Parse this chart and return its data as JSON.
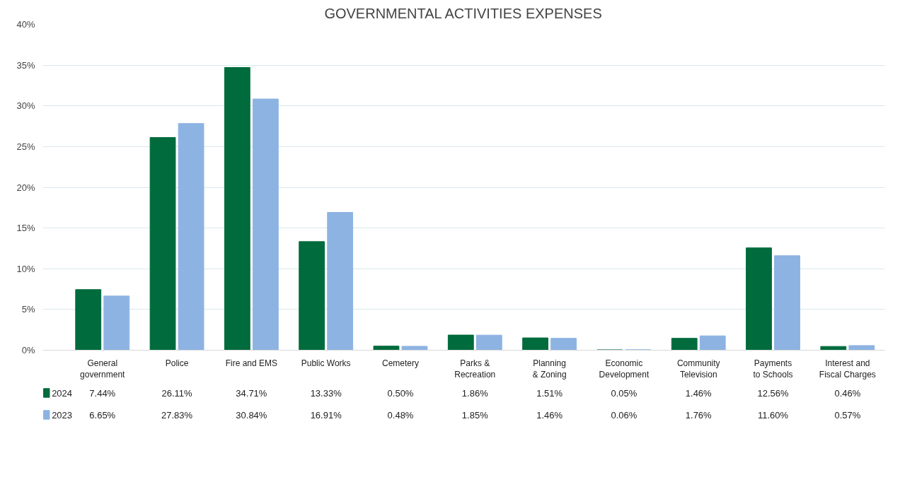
{
  "chart_data": {
    "type": "bar",
    "title": "GOVERNMENTAL ACTIVITIES EXPENSES",
    "categories": [
      "General government",
      "Police",
      "Fire and EMS",
      "Public Works",
      "Cemetery",
      "Parks & Recreation",
      "Planning & Zoning",
      "Economic Development",
      "Community Television",
      "Payments to Schools",
      "Interest and Fiscal Charges"
    ],
    "series": [
      {
        "name": "2024",
        "color": "#006b3c",
        "values": [
          7.44,
          26.11,
          34.71,
          13.33,
          0.5,
          1.86,
          1.51,
          0.05,
          1.46,
          12.56,
          0.46
        ],
        "value_labels": [
          "7.44%",
          "26.11%",
          "34.71%",
          "13.33%",
          "0.50%",
          "1.86%",
          "1.51%",
          "0.05%",
          "1.46%",
          "12.56%",
          "0.46%"
        ]
      },
      {
        "name": "2023",
        "color": "#8db3e2",
        "values": [
          6.65,
          27.83,
          30.84,
          16.91,
          0.48,
          1.85,
          1.46,
          0.06,
          1.76,
          11.6,
          0.57
        ],
        "value_labels": [
          "6.65%",
          "27.83%",
          "30.84%",
          "16.91%",
          "0.48%",
          "1.85%",
          "1.46%",
          "0.06%",
          "1.76%",
          "11.60%",
          "0.57%"
        ]
      }
    ],
    "ylim": [
      0,
      40
    ],
    "yticks": [
      {
        "value": 0,
        "label": "0%"
      },
      {
        "value": 5,
        "label": "5%"
      },
      {
        "value": 10,
        "label": "10%"
      },
      {
        "value": 15,
        "label": "15%"
      },
      {
        "value": 20,
        "label": "20%"
      },
      {
        "value": 25,
        "label": "25%"
      },
      {
        "value": 30,
        "label": "30%"
      },
      {
        "value": 35,
        "label": "35%"
      },
      {
        "value": 40,
        "label": "40%"
      }
    ],
    "grid": "y",
    "legend": "bottom left"
  }
}
